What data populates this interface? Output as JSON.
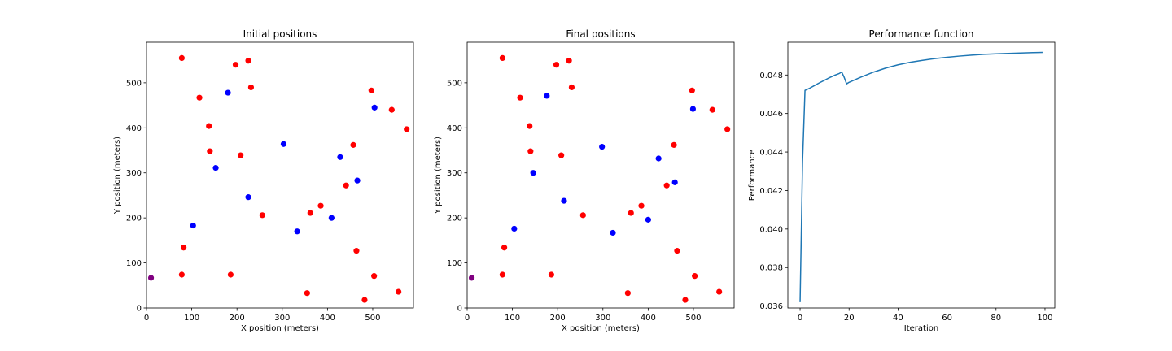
{
  "chart_data": [
    {
      "type": "scatter",
      "title": "Initial positions",
      "xlabel": "X position (meters)",
      "ylabel": "Y position (meters)",
      "xlim": [
        0,
        590
      ],
      "ylim": [
        0,
        590
      ],
      "xticks": [
        0,
        100,
        200,
        300,
        400,
        500
      ],
      "yticks": [
        0,
        100,
        200,
        300,
        400,
        500
      ],
      "grid": false,
      "series": [
        {
          "color": "#ff0000",
          "points": [
            [
              78,
              555
            ],
            [
              197,
              540
            ],
            [
              225,
              549
            ],
            [
              231,
              490
            ],
            [
              117,
              467
            ],
            [
              138,
              404
            ],
            [
              140,
              348
            ],
            [
              208,
              339
            ],
            [
              497,
              483
            ],
            [
              542,
              440
            ],
            [
              575,
              397
            ],
            [
              457,
              362
            ],
            [
              441,
              272
            ],
            [
              385,
              227
            ],
            [
              362,
              211
            ],
            [
              256,
              206
            ],
            [
              82,
              134
            ],
            [
              78,
              74
            ],
            [
              186,
              74
            ],
            [
              464,
              127
            ],
            [
              503,
              71
            ],
            [
              557,
              36
            ],
            [
              355,
              33
            ],
            [
              482,
              18
            ]
          ]
        },
        {
          "color": "#0000ff",
          "points": [
            [
              180,
              478
            ],
            [
              504,
              445
            ],
            [
              303,
              364
            ],
            [
              428,
              335
            ],
            [
              153,
              311
            ],
            [
              466,
              283
            ],
            [
              225,
              246
            ],
            [
              103,
              183
            ],
            [
              409,
              200
            ],
            [
              333,
              170
            ]
          ]
        },
        {
          "color": "#800080",
          "points": [
            [
              10,
              67
            ]
          ]
        }
      ]
    },
    {
      "type": "scatter",
      "title": "Final positions",
      "xlabel": "X position (meters)",
      "ylabel": "Y position (meters)",
      "xlim": [
        0,
        590
      ],
      "ylim": [
        0,
        590
      ],
      "xticks": [
        0,
        100,
        200,
        300,
        400,
        500
      ],
      "yticks": [
        0,
        100,
        200,
        300,
        400,
        500
      ],
      "grid": false,
      "series": [
        {
          "color": "#ff0000",
          "points": [
            [
              78,
              555
            ],
            [
              197,
              540
            ],
            [
              225,
              549
            ],
            [
              231,
              490
            ],
            [
              117,
              467
            ],
            [
              138,
              404
            ],
            [
              140,
              348
            ],
            [
              208,
              339
            ],
            [
              497,
              483
            ],
            [
              542,
              440
            ],
            [
              575,
              397
            ],
            [
              457,
              362
            ],
            [
              441,
              272
            ],
            [
              385,
              227
            ],
            [
              362,
              211
            ],
            [
              256,
              206
            ],
            [
              82,
              134
            ],
            [
              78,
              74
            ],
            [
              186,
              74
            ],
            [
              464,
              127
            ],
            [
              503,
              71
            ],
            [
              557,
              36
            ],
            [
              355,
              33
            ],
            [
              482,
              18
            ]
          ]
        },
        {
          "color": "#0000ff",
          "points": [
            [
              176,
              471
            ],
            [
              499,
              442
            ],
            [
              298,
              358
            ],
            [
              423,
              332
            ],
            [
              146,
              300
            ],
            [
              459,
              279
            ],
            [
              214,
              238
            ],
            [
              104,
              176
            ],
            [
              400,
              196
            ],
            [
              322,
              167
            ]
          ]
        },
        {
          "color": "#800080",
          "points": [
            [
              10,
              67
            ]
          ]
        }
      ]
    },
    {
      "type": "line",
      "title": "Performance function",
      "xlabel": "Iteration",
      "ylabel": "Performance",
      "xlim": [
        -5,
        104
      ],
      "ylim": [
        0.0359,
        0.0497
      ],
      "xticks": [
        0,
        20,
        40,
        60,
        80,
        100
      ],
      "yticks": [
        0.036,
        0.038,
        0.04,
        0.042,
        0.044,
        0.046,
        0.048
      ],
      "ytick_labels": [
        "0.036",
        "0.038",
        "0.040",
        "0.042",
        "0.044",
        "0.046",
        "0.048"
      ],
      "grid": false,
      "series": [
        {
          "color": "#1f77b4",
          "x": [
            0,
            1,
            2,
            4,
            6,
            8,
            10,
            12,
            14,
            16,
            17,
            18,
            19,
            20,
            25,
            30,
            35,
            40,
            45,
            50,
            55,
            60,
            65,
            70,
            75,
            80,
            85,
            90,
            95,
            99
          ],
          "y": [
            0.0362,
            0.0435,
            0.0472,
            0.04732,
            0.04746,
            0.0476,
            0.04773,
            0.04786,
            0.04798,
            0.04808,
            0.04815,
            0.04788,
            0.04754,
            0.04762,
            0.0479,
            0.04815,
            0.04836,
            0.04853,
            0.04866,
            0.04876,
            0.04885,
            0.04892,
            0.04898,
            0.04903,
            0.04907,
            0.0491,
            0.04912,
            0.04914,
            0.04916,
            0.04917
          ]
        }
      ]
    }
  ]
}
